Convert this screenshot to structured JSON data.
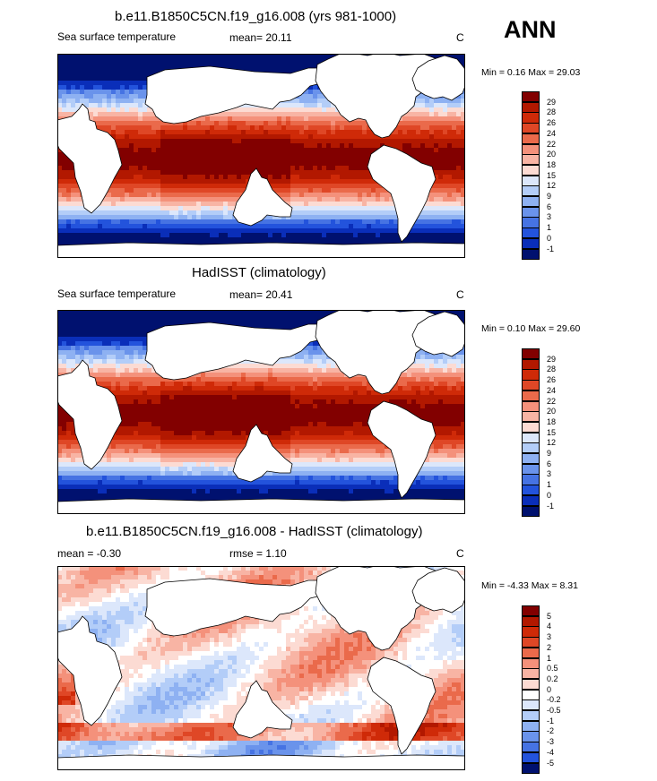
{
  "season": "ANN",
  "panels": [
    {
      "title": "b.e11.B1850C5CN.f19_g16.008 (yrs 981-1000)",
      "left_label": "Sea surface temperature",
      "center_label": "mean=  20.11",
      "units": "C",
      "minmax": "Min =   0.16 Max =  29.03",
      "ticks": [
        "29",
        "28",
        "26",
        "24",
        "22",
        "20",
        "18",
        "15",
        "12",
        "9",
        "6",
        "3",
        "1",
        "0",
        "-1"
      ],
      "colors": [
        "#820000",
        "#b21800",
        "#cf2a08",
        "#df4726",
        "#ea6a4b",
        "#f4917b",
        "#f8b4a4",
        "#fcdbd3",
        "#dce7fb",
        "#b3cdf8",
        "#8eb1f2",
        "#6a93eb",
        "#4673e3",
        "#2353dc",
        "#0a2eb9",
        "#00116f"
      ],
      "anomaly": false
    },
    {
      "title": "HadISST (climatology)",
      "left_label": "Sea surface temperature",
      "center_label": "mean=  20.41",
      "units": "C",
      "minmax": "Min =   0.10 Max =  29.60",
      "ticks": [
        "29",
        "28",
        "26",
        "24",
        "22",
        "20",
        "18",
        "15",
        "12",
        "9",
        "6",
        "3",
        "1",
        "0",
        "-1"
      ],
      "colors": [
        "#820000",
        "#b21800",
        "#cf2a08",
        "#df4726",
        "#ea6a4b",
        "#f4917b",
        "#f8b4a4",
        "#fcdbd3",
        "#dce7fb",
        "#b3cdf8",
        "#8eb1f2",
        "#6a93eb",
        "#4673e3",
        "#2353dc",
        "#0a2eb9",
        "#00116f"
      ],
      "anomaly": false
    },
    {
      "title": "b.e11.B1850C5CN.f19_g16.008 - HadISST (climatology)",
      "left_label": "mean =  -0.30",
      "center_label": "rmse =   1.10",
      "units": "C",
      "minmax": "Min =  -4.33 Max =   8.31",
      "ticks": [
        "5",
        "4",
        "3",
        "2",
        "1",
        "0.5",
        "0.2",
        "0",
        "-0.2",
        "-0.5",
        "-1",
        "-2",
        "-3",
        "-4",
        "-5"
      ],
      "colors": [
        "#820000",
        "#b21800",
        "#cf2a08",
        "#df4726",
        "#ea6a4b",
        "#f4917b",
        "#f8b4a4",
        "#fcdbd3",
        "#ffffff",
        "#dce7fb",
        "#b3cdf8",
        "#8eb1f2",
        "#6a93eb",
        "#4673e3",
        "#2353dc",
        "#00116f"
      ],
      "anomaly": true
    }
  ]
}
